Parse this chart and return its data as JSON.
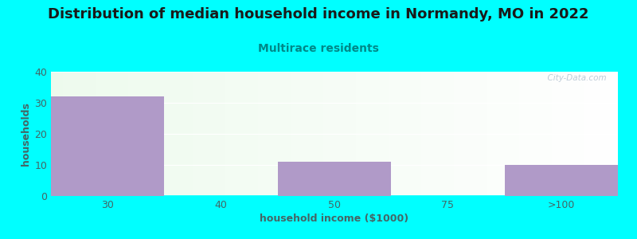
{
  "title": "Distribution of median household income in Normandy, MO in 2022",
  "subtitle": "Multirace residents",
  "subtitle_color": "#008888",
  "xlabel": "household income ($1000)",
  "ylabel": "households",
  "categories": [
    "30",
    "40",
    "50",
    "75",
    ">100"
  ],
  "values": [
    32,
    0,
    11,
    0,
    10
  ],
  "bar_color": "#b09ac8",
  "ylim": [
    0,
    40
  ],
  "yticks": [
    0,
    10,
    20,
    30,
    40
  ],
  "background_color": "#00ffff",
  "watermark": "  City-Data.com",
  "title_fontsize": 13,
  "subtitle_fontsize": 10,
  "axis_label_fontsize": 9,
  "tick_fontsize": 9,
  "tick_color": "#446666"
}
